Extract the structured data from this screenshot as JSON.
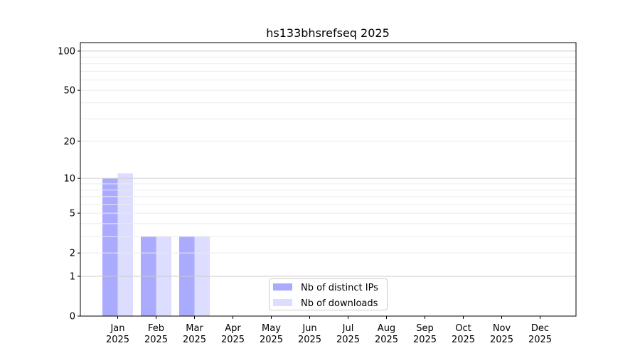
{
  "chart_data": {
    "type": "bar",
    "title": "hs133bhsrefseq 2025",
    "xlabel": "",
    "ylabel": "",
    "yscale": "log10(1+y)",
    "ylim": [
      0,
      116
    ],
    "yticks": [
      0,
      1,
      2,
      5,
      10,
      20,
      50,
      100
    ],
    "grid": true,
    "legend_position": "lower-center",
    "categories": [
      "Jan\n2025",
      "Feb\n2025",
      "Mar\n2025",
      "Apr\n2025",
      "May\n2025",
      "Jun\n2025",
      "Jul\n2025",
      "Aug\n2025",
      "Sep\n2025",
      "Oct\n2025",
      "Nov\n2025",
      "Dec\n2025"
    ],
    "series": [
      {
        "name": "Nb of distinct IPs",
        "color": "#aaaaff",
        "values": [
          10,
          3,
          3,
          0,
          0,
          0,
          0,
          0,
          0,
          0,
          0,
          0
        ]
      },
      {
        "name": "Nb of downloads",
        "color": "#ddddff",
        "values": [
          11,
          3,
          3,
          0,
          0,
          0,
          0,
          0,
          0,
          0,
          0,
          0
        ]
      }
    ]
  }
}
